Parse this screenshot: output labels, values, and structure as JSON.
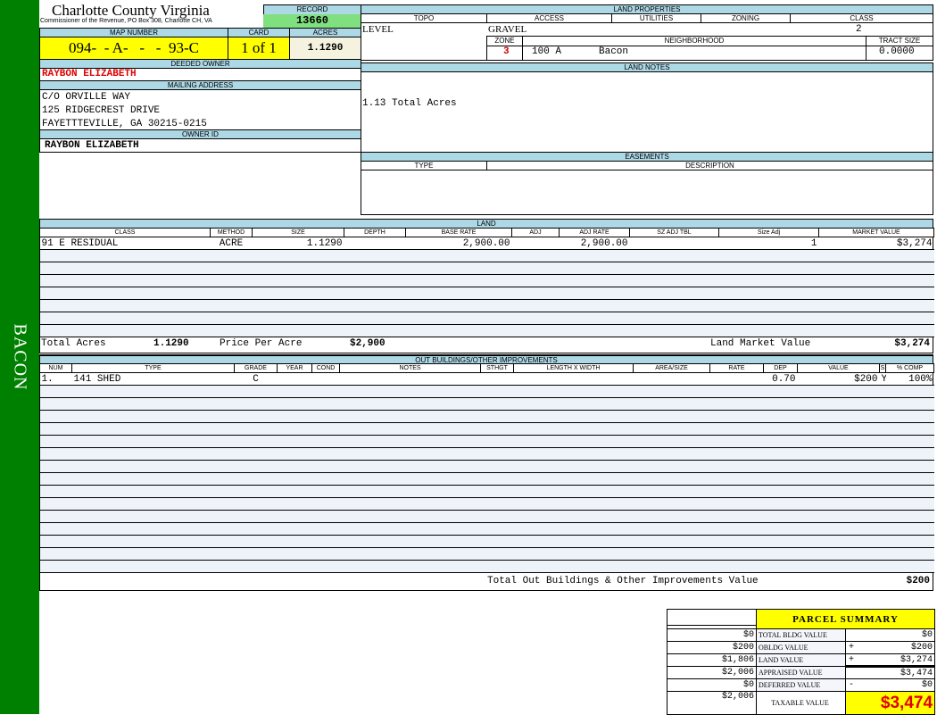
{
  "sidebar": {
    "label": "BACON"
  },
  "header": {
    "title": "Charlotte County Virginia",
    "subtitle": "Commissioner of the Revenue, PO Box 308, Charlotte CH, VA",
    "record_label": "RECORD",
    "record": "13660",
    "map_label": "MAP NUMBER",
    "map_number": "094-  - A-   -   -  93-C",
    "card_label": "CARD",
    "card": "1 of 1",
    "acres_label": "ACRES",
    "acres": "1.1290"
  },
  "owner": {
    "deeded_label": "DEEDED OWNER",
    "deeded": "RAYBON ELIZABETH",
    "mailing_label": "MAILING ADDRESS",
    "address": [
      "C/O ORVILLE WAY",
      "125 RIDGECREST DRIVE",
      "FAYETTTEVILLE, GA 30215-0215"
    ],
    "owner_id_label": "OWNER ID",
    "owner_id": "RAYBON ELIZABETH"
  },
  "land_properties": {
    "label": "LAND PROPERTIES",
    "topo_label": "TOPO",
    "topo": "LEVEL",
    "access_label": "ACCESS",
    "access": "GRAVEL",
    "utilities_label": "UTILITIES",
    "zoning_label": "ZONING",
    "class_label": "CLASS",
    "class": "2",
    "zone_label": "ZONE",
    "zone": "3",
    "neighborhood_label": "NEIGHBORHOOD",
    "neighborhood_code": "100 A",
    "neighborhood": "Bacon",
    "tract_label": "TRACT SIZE",
    "tract": "0.0000"
  },
  "land_notes": {
    "label": "LAND NOTES",
    "text": "1.13 Total Acres"
  },
  "easements": {
    "label": "EASEMENTS",
    "type_label": "TYPE",
    "desc_label": "DESCRIPTION"
  },
  "land": {
    "label": "LAND",
    "headers": [
      "CLASS",
      "METHOD",
      "SIZE",
      "DEPTH",
      "BASE RATE",
      "ADJ",
      "ADJ RATE",
      "SZ ADJ TBL",
      "Size Adj",
      "MARKET VALUE"
    ],
    "rows": [
      [
        "91 E RESIDUAL",
        "ACRE",
        "1.1290",
        "",
        "2,900.00",
        "",
        "2,900.00",
        "",
        "1",
        "$3,274"
      ]
    ],
    "total_acres_label": "Total Acres",
    "total_acres": "1.1290",
    "ppa_label": "Price Per Acre",
    "ppa": "$2,900",
    "lmv_label": "Land Market Value",
    "lmv": "$3,274"
  },
  "outbuildings": {
    "label": "OUT BUILDINGS/OTHER IMPROVEMENTS",
    "headers": [
      "NUM",
      "TYPE",
      "GRADE",
      "YEAR",
      "COND",
      "NOTES",
      "STHGT",
      "LENGTH X WIDTH",
      "AREA/SIZE",
      "RATE",
      "DEP",
      "VALUE",
      "S",
      "% COMP"
    ],
    "rows": [
      [
        "1.",
        "141 SHED",
        "C",
        "",
        "",
        "",
        "",
        "",
        "",
        "",
        "0.70",
        "$200",
        "Y",
        "100%"
      ]
    ],
    "total_label": "Total Out Buildings & Other Improvements Value",
    "total": "$200"
  },
  "summary": {
    "title": "PARCEL SUMMARY",
    "rows": [
      {
        "left": "$0",
        "label": "TOTAL BLDG VALUE",
        "sign": "",
        "value": "$0"
      },
      {
        "left": "$200",
        "label": "OBLDG VALUE",
        "sign": "+",
        "value": "$200"
      },
      {
        "left": "$1,806",
        "label": "LAND VALUE",
        "sign": "+",
        "value": "$3,274"
      },
      {
        "left": "$2,006",
        "label": "APPRAISED VALUE",
        "sign": "",
        "value": "$3,474"
      },
      {
        "left": "$0",
        "label": "DEFERRED VALUE",
        "sign": "-",
        "value": "$0"
      }
    ],
    "taxable_left": "$2,006",
    "taxable_label": "TAXABLE VALUE",
    "taxable": "$3,474"
  },
  "colors": {
    "sidebar": "#008000",
    "label_bg": "#add8e6",
    "highlight": "#ffff00",
    "record_bg": "#80e080",
    "owner_red": "#e00000"
  }
}
